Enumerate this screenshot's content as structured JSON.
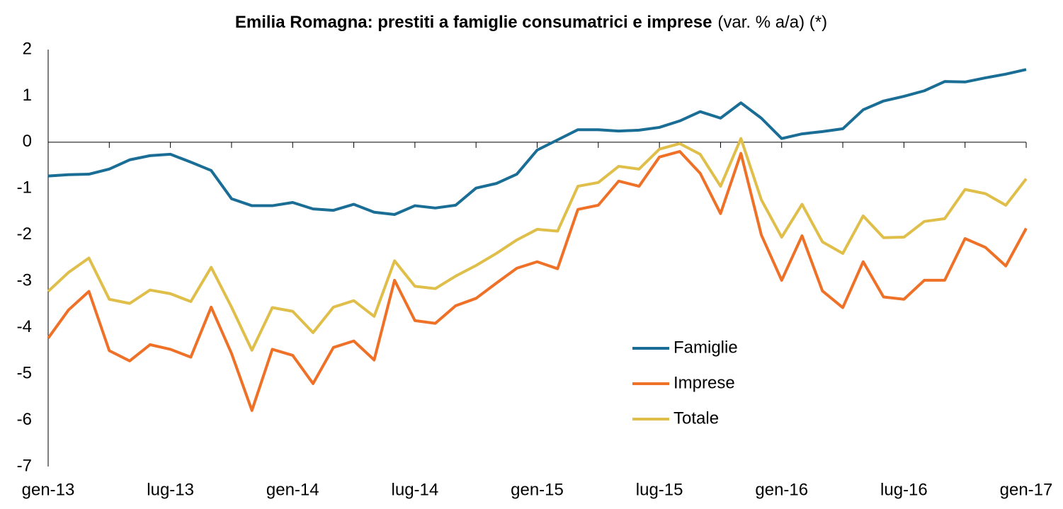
{
  "chart_data": {
    "type": "line",
    "title": "Emilia Romagna: prestiti a famiglie consumatrici e imprese",
    "subtitle": "(var. % a/a) (*)",
    "categories": [
      "gen-13",
      null,
      null,
      null,
      null,
      null,
      "lug-13",
      null,
      null,
      null,
      null,
      null,
      "gen-14",
      null,
      null,
      null,
      null,
      null,
      "lug-14",
      null,
      null,
      null,
      null,
      null,
      "gen-15",
      null,
      null,
      null,
      null,
      null,
      "lug-15",
      null,
      null,
      null,
      null,
      null,
      "gen-16",
      null,
      null,
      null,
      null,
      null,
      "lug-16",
      null,
      null,
      null,
      null,
      null,
      "gen-17"
    ],
    "series": [
      {
        "name": "Famiglie",
        "color": "#1a6e96",
        "values": [
          -0.73,
          -0.7,
          -0.69,
          -0.58,
          -0.38,
          -0.29,
          -0.26,
          -0.43,
          -0.61,
          -1.22,
          -1.37,
          -1.37,
          -1.3,
          -1.44,
          -1.47,
          -1.34,
          -1.51,
          -1.56,
          -1.37,
          -1.42,
          -1.36,
          -0.99,
          -0.89,
          -0.69,
          -0.17,
          0.05,
          0.27,
          0.27,
          0.24,
          0.26,
          0.32,
          0.46,
          0.66,
          0.52,
          0.85,
          0.52,
          0.08,
          0.18,
          0.23,
          0.29,
          0.7,
          0.89,
          0.99,
          1.11,
          1.31,
          1.3,
          1.39,
          1.47,
          1.57
        ]
      },
      {
        "name": "Imprese",
        "color": "#ee7127",
        "values": [
          -4.23,
          -3.62,
          -3.22,
          -4.5,
          -4.72,
          -4.37,
          -4.47,
          -4.64,
          -3.56,
          -4.56,
          -5.79,
          -4.47,
          -4.6,
          -5.21,
          -4.43,
          -4.29,
          -4.7,
          -2.98,
          -3.85,
          -3.91,
          -3.53,
          -3.37,
          -3.04,
          -2.72,
          -2.58,
          -2.73,
          -1.45,
          -1.36,
          -0.84,
          -0.95,
          -0.32,
          -0.2,
          -0.67,
          -1.54,
          -0.24,
          -2.0,
          -2.98,
          -2.02,
          -3.21,
          -3.57,
          -2.58,
          -3.34,
          -3.39,
          -2.98,
          -2.98,
          -2.08,
          -2.27,
          -2.67,
          -1.86
        ]
      },
      {
        "name": "Totale",
        "color": "#dfbe4a",
        "values": [
          -3.22,
          -2.81,
          -2.5,
          -3.39,
          -3.48,
          -3.19,
          -3.27,
          -3.44,
          -2.7,
          -3.56,
          -4.49,
          -3.57,
          -3.65,
          -4.11,
          -3.56,
          -3.42,
          -3.76,
          -2.56,
          -3.11,
          -3.16,
          -2.89,
          -2.66,
          -2.4,
          -2.11,
          -1.88,
          -1.92,
          -0.95,
          -0.87,
          -0.52,
          -0.58,
          -0.15,
          -0.03,
          -0.26,
          -0.95,
          0.08,
          -1.24,
          -2.05,
          -1.34,
          -2.15,
          -2.4,
          -1.59,
          -2.06,
          -2.05,
          -1.71,
          -1.65,
          -1.02,
          -1.11,
          -1.36,
          -0.79
        ]
      }
    ],
    "ylim": [
      -7,
      2
    ],
    "yticks": [
      -7,
      -6,
      -5,
      -4,
      -3,
      -2,
      -1,
      0,
      1,
      2
    ],
    "grid": false,
    "legend": "lower center"
  }
}
